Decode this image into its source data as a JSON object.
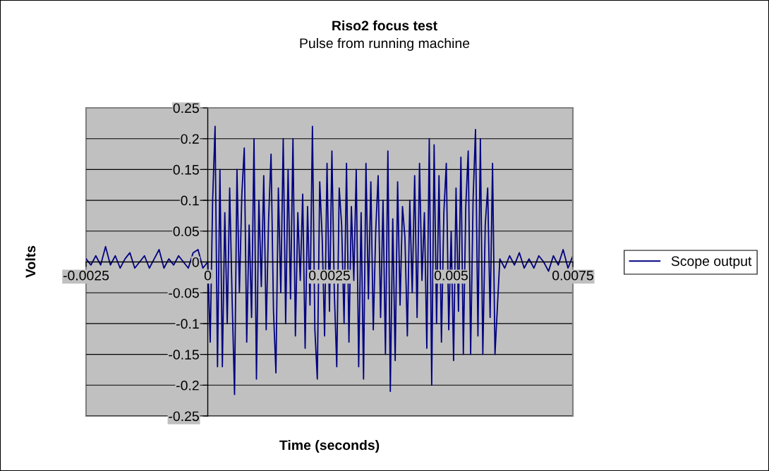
{
  "chart_data": {
    "type": "line",
    "title": "Riso2 focus test",
    "subtitle": "Pulse from running machine",
    "xlabel": "Time (seconds)",
    "ylabel": "Volts",
    "xlim": [
      -0.0025,
      0.0075
    ],
    "xticks": [
      -0.0025,
      0,
      0.0025,
      0.005,
      0.0075
    ],
    "ylim": [
      -0.25,
      0.25
    ],
    "yticks": [
      -0.25,
      -0.2,
      -0.15,
      -0.1,
      -0.05,
      0,
      0.05,
      0.1,
      0.15,
      0.2,
      0.25
    ],
    "grid": "y",
    "legend": "right",
    "marker": "none",
    "line_style": "solid",
    "series": [
      {
        "name": "Scope output",
        "color": "#000080",
        "x": [
          -0.0025,
          -0.0024,
          -0.0023,
          -0.0022,
          -0.0021,
          -0.002,
          -0.0019,
          -0.0018,
          -0.0017,
          -0.0016,
          -0.0015,
          -0.0014,
          -0.0013,
          -0.0012,
          -0.0011,
          -0.001,
          -0.0009,
          -0.0008,
          -0.0007,
          -0.0006,
          -0.0005,
          -0.0004,
          -0.0003,
          -0.0002,
          -0.0001,
          0,
          5e-05,
          0.0001,
          0.00015,
          0.0002,
          0.00025,
          0.0003,
          0.00035,
          0.0004,
          0.00045,
          0.0005,
          0.00055,
          0.0006,
          0.00065,
          0.0007,
          0.00075,
          0.0008,
          0.00085,
          0.0009,
          0.00095,
          0.001,
          0.00105,
          0.0011,
          0.00115,
          0.0012,
          0.00125,
          0.0013,
          0.00135,
          0.0014,
          0.00145,
          0.0015,
          0.00155,
          0.0016,
          0.00165,
          0.0017,
          0.00175,
          0.0018,
          0.00185,
          0.0019,
          0.00195,
          0.002,
          0.00205,
          0.0021,
          0.00215,
          0.0022,
          0.00225,
          0.0023,
          0.00235,
          0.0024,
          0.00245,
          0.0025,
          0.00255,
          0.0026,
          0.00265,
          0.0027,
          0.00275,
          0.0028,
          0.00285,
          0.0029,
          0.00295,
          0.003,
          0.00305,
          0.0031,
          0.00315,
          0.0032,
          0.00325,
          0.0033,
          0.00335,
          0.0034,
          0.00345,
          0.0035,
          0.00355,
          0.0036,
          0.00365,
          0.0037,
          0.00375,
          0.0038,
          0.00385,
          0.0039,
          0.00395,
          0.004,
          0.00405,
          0.0041,
          0.00415,
          0.0042,
          0.00425,
          0.0043,
          0.00435,
          0.0044,
          0.00445,
          0.0045,
          0.00455,
          0.0046,
          0.00465,
          0.0047,
          0.00475,
          0.0048,
          0.00485,
          0.0049,
          0.00495,
          0.005,
          0.00505,
          0.0051,
          0.00515,
          0.0052,
          0.00525,
          0.0053,
          0.00535,
          0.0054,
          0.00545,
          0.0055,
          0.00555,
          0.0056,
          0.00565,
          0.0057,
          0.00575,
          0.0058,
          0.00585,
          0.0059,
          0.006,
          0.0061,
          0.0062,
          0.0063,
          0.0064,
          0.0065,
          0.0066,
          0.0067,
          0.0068,
          0.0069,
          0.007,
          0.0071,
          0.0072,
          0.0073,
          0.0074,
          0.0075
        ],
        "values": [
          0.005,
          -0.005,
          0.01,
          -0.005,
          0.025,
          -0.005,
          0.01,
          -0.01,
          0.005,
          0.015,
          -0.01,
          0.0,
          0.01,
          -0.01,
          0.005,
          0.02,
          -0.01,
          0.005,
          -0.005,
          0.01,
          0.0,
          -0.01,
          0.015,
          0.02,
          -0.01,
          0.0,
          -0.13,
          0.1,
          0.22,
          -0.17,
          0.15,
          -0.17,
          0.08,
          -0.1,
          0.12,
          -0.06,
          -0.215,
          0.15,
          -0.05,
          0.11,
          0.185,
          -0.13,
          0.06,
          -0.09,
          0.2,
          -0.19,
          0.1,
          -0.04,
          0.14,
          -0.11,
          0.07,
          0.175,
          -0.08,
          -0.18,
          0.12,
          -0.05,
          0.2,
          -0.1,
          0.15,
          -0.06,
          0.2,
          -0.12,
          0.08,
          -0.03,
          0.11,
          -0.14,
          0.09,
          -0.07,
          0.22,
          -0.11,
          -0.19,
          0.13,
          0.04,
          -0.12,
          0.16,
          -0.08,
          0.18,
          -0.05,
          -0.17,
          0.12,
          0.06,
          -0.1,
          0.16,
          -0.13,
          0.09,
          -0.03,
          0.15,
          -0.17,
          0.08,
          -0.19,
          0.16,
          -0.06,
          0.13,
          -0.11,
          0.05,
          0.14,
          -0.09,
          0.1,
          -0.15,
          0.18,
          -0.21,
          0.07,
          -0.16,
          0.13,
          -0.07,
          0.09,
          0.04,
          -0.12,
          0.1,
          -0.05,
          0.14,
          -0.09,
          0.16,
          -0.03,
          0.08,
          -0.14,
          0.2,
          -0.2,
          0.19,
          -0.1,
          0.14,
          -0.13,
          0.08,
          0.16,
          -0.11,
          0.05,
          -0.16,
          0.12,
          -0.08,
          0.17,
          -0.15,
          0.09,
          0.18,
          -0.15,
          0.1,
          0.215,
          -0.12,
          0.2,
          -0.15,
          0.06,
          0.12,
          -0.09,
          0.16,
          -0.15,
          0.005,
          -0.01,
          0.01,
          -0.005,
          0.015,
          -0.01,
          0.005,
          -0.01,
          0.01,
          0.0,
          -0.015,
          0.01,
          -0.005,
          0.02,
          -0.01,
          0.01
        ]
      }
    ]
  }
}
